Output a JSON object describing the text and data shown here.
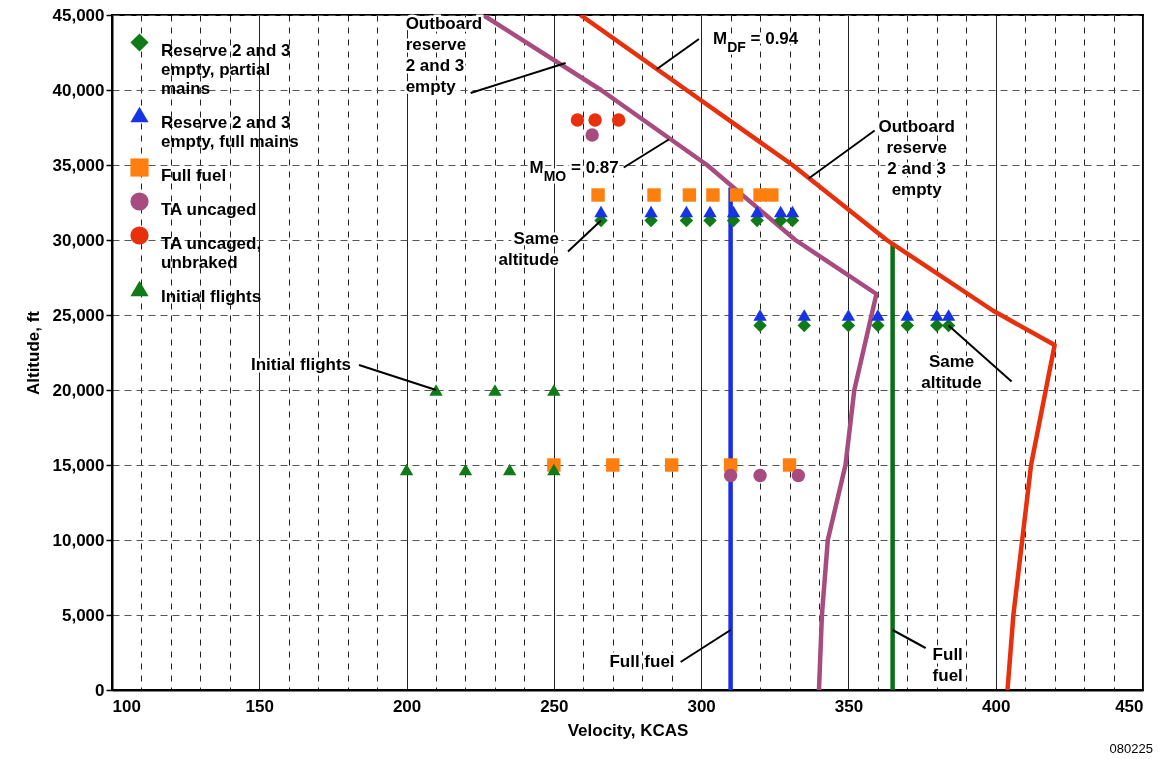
{
  "chart_data": {
    "type": "scatter",
    "xlabel": "Velocity, KCAS",
    "ylabel": "Altitude, ft",
    "xlim": [
      100,
      450
    ],
    "xticks": [
      100,
      {
        "value": 110,
        "label": null
      },
      {
        "value": 120,
        "label": null
      },
      {
        "value": 130,
        "label": null
      },
      {
        "value": 140,
        "label": null
      },
      150,
      {
        "value": 160,
        "label": null
      },
      {
        "value": 170,
        "label": null
      },
      {
        "value": 180,
        "label": null
      },
      {
        "value": 190,
        "label": null
      },
      200,
      {
        "value": 210,
        "label": null
      },
      {
        "value": 220,
        "label": null
      },
      {
        "value": 230,
        "label": null
      },
      {
        "value": 240,
        "label": null
      },
      250,
      {
        "value": 260,
        "label": null
      },
      {
        "value": 270,
        "label": null
      },
      {
        "value": 280,
        "label": null
      },
      {
        "value": 290,
        "label": null
      },
      300,
      {
        "value": 310,
        "label": null
      },
      {
        "value": 320,
        "label": null
      },
      {
        "value": 330,
        "label": null
      },
      {
        "value": 340,
        "label": null
      },
      350,
      {
        "value": 360,
        "label": null
      },
      {
        "value": 370,
        "label": null
      },
      {
        "value": 380,
        "label": null
      },
      {
        "value": 390,
        "label": null
      },
      400,
      {
        "value": 410,
        "label": null
      },
      {
        "value": 420,
        "label": null
      },
      {
        "value": 430,
        "label": null
      },
      {
        "value": 440,
        "label": null
      },
      450
    ],
    "ylim": [
      0,
      45000
    ],
    "yticks": [
      0,
      {
        "value": 5000,
        "label": "5,000"
      },
      {
        "value": 10000,
        "label": "10,000"
      },
      {
        "value": 15000,
        "label": "15,000"
      },
      {
        "value": 20000,
        "label": "20,000"
      },
      {
        "value": 25000,
        "label": "25,000"
      },
      {
        "value": 30000,
        "label": "30,000"
      },
      {
        "value": 35000,
        "label": "35,000"
      },
      {
        "value": 40000,
        "label": "40,000"
      },
      {
        "value": 45000,
        "label": "45,000"
      }
    ],
    "grid": true,
    "legend": "top left",
    "series": [
      {
        "type": "line",
        "color": "#1a2ee6",
        "x": [
          310,
          310
        ],
        "values": [
          0,
          33500
        ]
      },
      {
        "type": "line",
        "color": "#0a7018",
        "x": [
          365,
          365
        ],
        "values": [
          0,
          29700
        ]
      },
      {
        "type": "line",
        "color": "#a84b7f",
        "x": [
          226,
          266,
          302,
          332,
          359.5,
          352,
          349,
          343,
          341,
          340
        ],
        "values": [
          45000,
          40000,
          35000,
          30000,
          26400,
          20000,
          15000,
          10000,
          5000,
          0
        ]
      },
      {
        "type": "line",
        "color": "#e8300c",
        "x": [
          259,
          295,
          331,
          363,
          399,
          420,
          417,
          412,
          409,
          406,
          404
        ],
        "values": [
          45000,
          40000,
          35000,
          30000,
          25300,
          23000,
          20000,
          15000,
          10000,
          5000,
          0
        ]
      },
      {
        "name": "Reserve 2 and 3 empty, partial mains",
        "marker": "diamond",
        "color": "#0f7b16",
        "x": [
          266,
          283,
          295,
          303,
          311,
          319,
          327,
          331,
          320,
          335,
          350,
          360,
          370,
          380,
          384
        ],
        "values": [
          31300,
          31300,
          31300,
          31300,
          31300,
          31300,
          31300,
          31300,
          24300,
          24300,
          24300,
          24300,
          24300,
          24300,
          24300
        ]
      },
      {
        "name": "Reserve 2 and 3 empty, full mains",
        "marker": "triangle",
        "color": "#1733e6",
        "x": [
          266,
          283,
          295,
          303,
          311,
          319,
          327,
          331,
          320,
          335,
          350,
          360,
          370,
          380,
          384
        ],
        "values": [
          31900,
          31900,
          31900,
          31900,
          31900,
          31900,
          31900,
          31900,
          25000,
          25000,
          25000,
          25000,
          25000,
          25000,
          25000
        ]
      },
      {
        "name": "Full fuel",
        "marker": "square",
        "color": "#ff7f0e",
        "x": [
          265,
          284,
          296,
          304,
          312,
          320,
          324,
          250,
          270,
          290,
          310,
          330
        ],
        "values": [
          33000,
          33000,
          33000,
          33000,
          33000,
          33000,
          33000,
          15000,
          15000,
          15000,
          15000,
          15000
        ]
      },
      {
        "name": "TA uncaged",
        "marker": "circle",
        "color": "#a84b7f",
        "x": [
          263,
          310,
          320,
          333
        ],
        "values": [
          37000,
          14300,
          14300,
          14300
        ]
      },
      {
        "name": "TA uncaged, unbraked",
        "marker": "circle",
        "color": "#e8300c",
        "x": [
          258,
          264,
          272
        ],
        "values": [
          38000,
          38000,
          38000
        ]
      },
      {
        "name": "Initial flights",
        "marker": "triangle",
        "color": "#0f7b16",
        "x": [
          210,
          230,
          250,
          200,
          220,
          235,
          250
        ],
        "values": [
          20000,
          20000,
          20000,
          14700,
          14700,
          14700,
          14700
        ]
      }
    ],
    "annotations": [
      {
        "text": "Outboard\nreserve\n2 and 3\nempty",
        "x": 254,
        "y": 41800
      },
      {
        "text": "M$_{MO}$ = 0.87",
        "x": 289,
        "y": 36700
      },
      {
        "text": "M$_{DF}$ = 0.94",
        "x": 285,
        "y": 41400
      },
      {
        "text": "Outboard\nreserve\n2 and 3\nempty",
        "x": 336.5,
        "y": 34100
      },
      {
        "text": "Same\naltitude",
        "x": 266,
        "y": 31300
      },
      {
        "text": "Same\naltitude",
        "x": 384,
        "y": 24300
      },
      {
        "text": "Initial flights",
        "x": 210,
        "y": 20000
      },
      {
        "text": "Full fuel",
        "x": 310,
        "y": 4000
      },
      {
        "text": "Full\nfuel",
        "x": 365,
        "y": 4000
      },
      "080225"
    ]
  }
}
